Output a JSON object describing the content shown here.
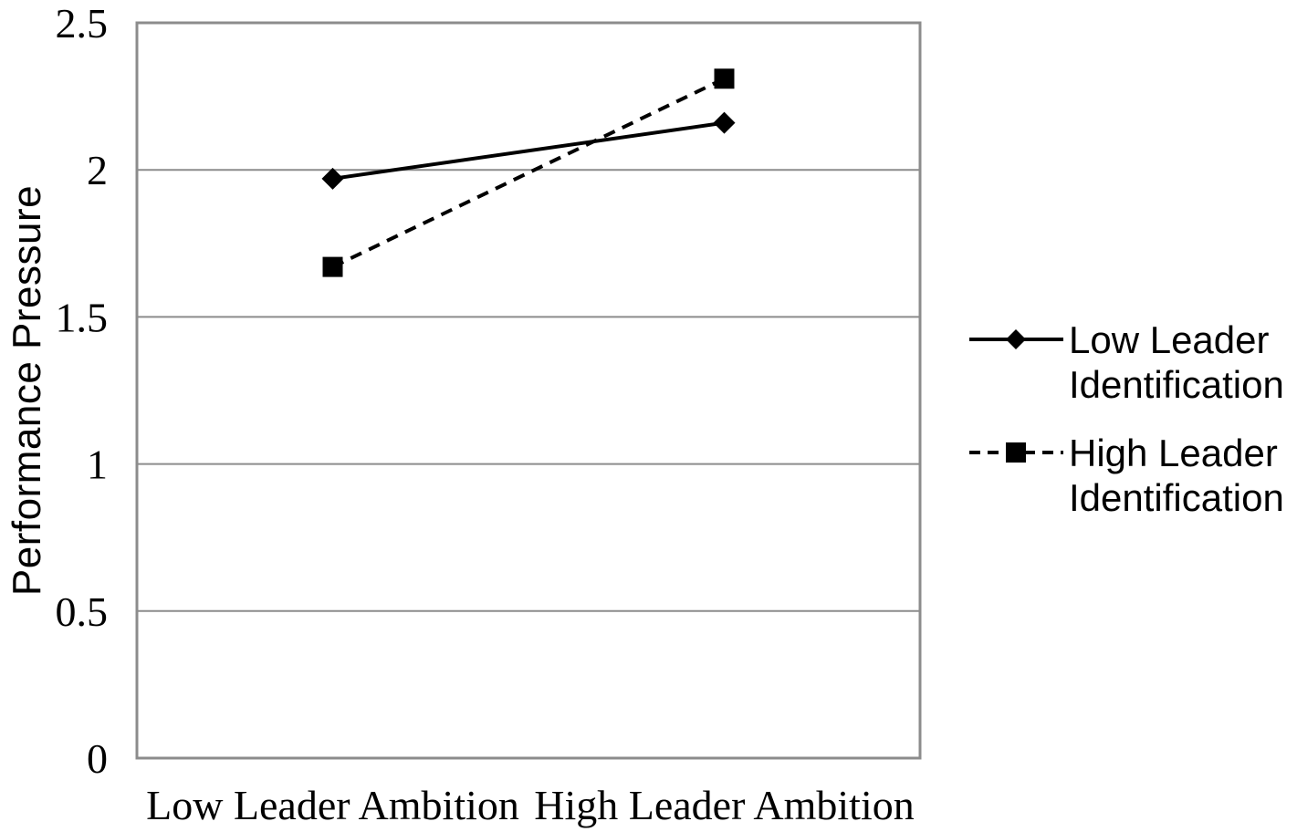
{
  "chart_data": {
    "type": "line",
    "title": "",
    "xlabel": "",
    "ylabel": "Performance Pressure",
    "categories": [
      "Low Leader Ambition",
      "High Leader Ambition"
    ],
    "series": [
      {
        "name": "Low Leader Identification",
        "values": [
          1.97,
          2.16
        ],
        "line_style": "solid",
        "marker": "diamond",
        "color": "#000000"
      },
      {
        "name": "High Leader Identification",
        "values": [
          1.67,
          2.31
        ],
        "line_style": "dashed",
        "marker": "square",
        "color": "#000000"
      }
    ],
    "ylim": [
      0,
      2.5
    ],
    "yticks": [
      0,
      0.5,
      1,
      1.5,
      2,
      2.5
    ],
    "grid": "horizontal",
    "gridline_color": "#8c8c8c",
    "axis_border_color": "#8c8c8c",
    "legend_position": "right"
  }
}
